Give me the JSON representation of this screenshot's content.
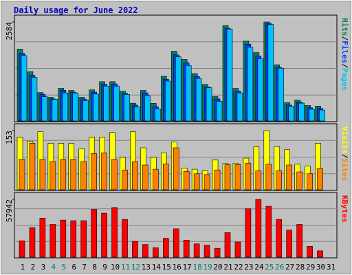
{
  "title": "Daily usage for June 2022",
  "chart_data": [
    {
      "type": "bar",
      "ylim": [
        0,
        2584
      ],
      "yticks": [
        2584
      ],
      "legend_separator": "/",
      "series": [
        {
          "name": "Hits",
          "color": "#00805C",
          "values": [
            1870,
            1280,
            730,
            605,
            840,
            785,
            605,
            800,
            1015,
            1015,
            765,
            450,
            785,
            445,
            1157,
            1815,
            1600,
            1228,
            943,
            623,
            2490,
            837,
            2080,
            1780,
            2584,
            1460,
            463,
            534,
            390,
            374,
            null
          ]
        },
        {
          "name": "Files",
          "color": "#0040FF",
          "values": [
            1760,
            1180,
            680,
            560,
            790,
            740,
            560,
            740,
            950,
            955,
            710,
            400,
            720,
            360,
            1080,
            1720,
            1510,
            1150,
            880,
            560,
            2420,
            770,
            2000,
            1690,
            2550,
            1390,
            400,
            480,
            330,
            310,
            null
          ]
        },
        {
          "name": "Pages",
          "color": "#00C0FF",
          "values": [
            1700,
            1130,
            620,
            550,
            720,
            720,
            520,
            690,
            900,
            900,
            680,
            350,
            650,
            300,
            1030,
            1670,
            1440,
            1100,
            860,
            500,
            2400,
            720,
            1920,
            1620,
            2520,
            1370,
            370,
            450,
            290,
            270,
            null
          ]
        }
      ]
    },
    {
      "type": "bar",
      "ylim": [
        0,
        153
      ],
      "yticks": [
        153
      ],
      "legend_separator": "/",
      "series": [
        {
          "name": "Visits",
          "color": "#FFFF00",
          "values": [
            136,
            125,
            150,
            120,
            120,
            120,
            106,
            136,
            136,
            148,
            83,
            150,
            108,
            83,
            95,
            123,
            55,
            52,
            48,
            76,
            67,
            67,
            81,
            111,
            153,
            111,
            103,
            65,
            60,
            120,
            null
          ]
        },
        {
          "name": "Sites",
          "color": "#FF8000",
          "values": [
            78,
            120,
            78,
            72,
            78,
            78,
            72,
            93,
            95,
            78,
            50,
            72,
            63,
            52,
            66,
            108,
            46,
            40,
            38,
            50,
            64,
            64,
            68,
            48,
            65,
            48,
            63,
            45,
            40,
            54,
            null
          ]
        }
      ]
    },
    {
      "type": "bar",
      "ylim": [
        0,
        57942
      ],
      "yticks": [
        57942
      ],
      "categories": [
        "1",
        "2",
        "3",
        "4",
        "5",
        "6",
        "7",
        "8",
        "9",
        "10",
        "11",
        "12",
        "13",
        "14",
        "15",
        "16",
        "17",
        "18",
        "19",
        "20",
        "21",
        "22",
        "23",
        "24",
        "25",
        "26",
        "27",
        "28",
        "29",
        "30",
        "31"
      ],
      "category_colors": [
        "#000000",
        "#000000",
        "#000000",
        "#00805C",
        "#00805C",
        "#000000",
        "#000000",
        "#000000",
        "#000000",
        "#000000",
        "#00805C",
        "#00805C",
        "#000000",
        "#000000",
        "#000000",
        "#000000",
        "#000000",
        "#00805C",
        "#00805C",
        "#000000",
        "#000000",
        "#000000",
        "#000000",
        "#000000",
        "#00805C",
        "#00805C",
        "#000000",
        "#000000",
        "#000000",
        "#000000",
        "#000000"
      ],
      "series": [
        {
          "name": "KBytes",
          "color": "#FF0000",
          "values": [
            15920,
            29290,
            38840,
            32470,
            36930,
            36300,
            36300,
            47750,
            43930,
            49660,
            37570,
            15280,
            12100,
            8910,
            18460,
            28010,
            16550,
            12730,
            11460,
            8280,
            24190,
            14640,
            48390,
            57942,
            50930,
            37570,
            26740,
            32470,
            10190,
            5730,
            null
          ]
        }
      ]
    }
  ]
}
